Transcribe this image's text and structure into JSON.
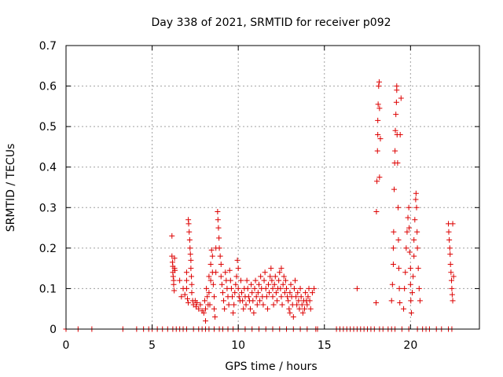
{
  "chart_data": {
    "type": "scatter",
    "title": "Day 338 of 2021, SRMTID for receiver p092",
    "xlabel": "GPS time / hours",
    "ylabel": "SRMTID / TECUs",
    "xlim": [
      0,
      24
    ],
    "ylim": [
      0,
      0.7
    ],
    "x_ticks": [
      0,
      5,
      10,
      15,
      20
    ],
    "x_tick_labels": [
      "0",
      "5",
      "10",
      "15",
      "20"
    ],
    "y_ticks": [
      0,
      0.1,
      0.2,
      0.3,
      0.4,
      0.5,
      0.6,
      0.7
    ],
    "y_tick_labels": [
      "0",
      "0.1",
      "0.2",
      "0.3",
      "0.4",
      "0.5",
      "0.6",
      "0.7"
    ],
    "grid": true,
    "marker": "+",
    "color": "#dd0000",
    "series": [
      {
        "name": "SRMTID",
        "points": [
          [
            0.0,
            0
          ],
          [
            0.7,
            0
          ],
          [
            1.5,
            0
          ],
          [
            3.3,
            0
          ],
          [
            4.1,
            0
          ],
          [
            4.5,
            0
          ],
          [
            4.8,
            0
          ],
          [
            5.0,
            0
          ],
          [
            5.3,
            0
          ],
          [
            5.6,
            0
          ],
          [
            5.9,
            0
          ],
          [
            6.2,
            0
          ],
          [
            6.4,
            0
          ],
          [
            6.6,
            0
          ],
          [
            6.8,
            0
          ],
          [
            7.0,
            0
          ],
          [
            7.4,
            0
          ],
          [
            7.7,
            0
          ],
          [
            7.9,
            0
          ],
          [
            8.1,
            0
          ],
          [
            8.3,
            0
          ],
          [
            8.6,
            0
          ],
          [
            8.9,
            0
          ],
          [
            9.1,
            0
          ],
          [
            9.4,
            0
          ],
          [
            9.7,
            0
          ],
          [
            10.0,
            0
          ],
          [
            10.4,
            0
          ],
          [
            10.8,
            0
          ],
          [
            11.2,
            0
          ],
          [
            11.6,
            0
          ],
          [
            12.0,
            0
          ],
          [
            12.4,
            0
          ],
          [
            12.8,
            0
          ],
          [
            13.2,
            0
          ],
          [
            13.6,
            0
          ],
          [
            14.0,
            0
          ],
          [
            14.5,
            0
          ],
          [
            14.6,
            0
          ],
          [
            15.7,
            0
          ],
          [
            15.9,
            0
          ],
          [
            16.1,
            0
          ],
          [
            16.3,
            0
          ],
          [
            16.5,
            0
          ],
          [
            16.7,
            0
          ],
          [
            16.9,
            0
          ],
          [
            17.1,
            0
          ],
          [
            17.3,
            0
          ],
          [
            17.5,
            0
          ],
          [
            17.7,
            0
          ],
          [
            17.9,
            0
          ],
          [
            18.2,
            0
          ],
          [
            18.4,
            0
          ],
          [
            18.7,
            0
          ],
          [
            18.9,
            0
          ],
          [
            19.1,
            0
          ],
          [
            19.5,
            0
          ],
          [
            19.9,
            0
          ],
          [
            20.4,
            0
          ],
          [
            20.7,
            0
          ],
          [
            20.9,
            0
          ],
          [
            21.1,
            0
          ],
          [
            21.5,
            0
          ],
          [
            21.8,
            0
          ],
          [
            22.2,
            0
          ],
          [
            22.4,
            0
          ],
          [
            6.15,
            0.23
          ],
          [
            6.15,
            0.18
          ],
          [
            6.18,
            0.165
          ],
          [
            6.2,
            0.155
          ],
          [
            6.2,
            0.14
          ],
          [
            6.22,
            0.13
          ],
          [
            6.25,
            0.12
          ],
          [
            6.25,
            0.11
          ],
          [
            6.28,
            0.095
          ],
          [
            6.3,
            0.15
          ],
          [
            6.3,
            0.175
          ],
          [
            6.32,
            0.145
          ],
          [
            6.6,
            0.12
          ],
          [
            6.7,
            0.08
          ],
          [
            6.8,
            0.1
          ],
          [
            6.9,
            0.085
          ],
          [
            7.0,
            0.14
          ],
          [
            7.0,
            0.12
          ],
          [
            7.0,
            0.1
          ],
          [
            7.05,
            0.075
          ],
          [
            7.1,
            0.065
          ],
          [
            7.1,
            0.27
          ],
          [
            7.12,
            0.26
          ],
          [
            7.15,
            0.24
          ],
          [
            7.18,
            0.22
          ],
          [
            7.2,
            0.2
          ],
          [
            7.22,
            0.185
          ],
          [
            7.25,
            0.17
          ],
          [
            7.25,
            0.15
          ],
          [
            7.28,
            0.13
          ],
          [
            7.3,
            0.11
          ],
          [
            7.3,
            0.09
          ],
          [
            7.35,
            0.07
          ],
          [
            7.4,
            0.06
          ],
          [
            7.5,
            0.07
          ],
          [
            7.55,
            0.055
          ],
          [
            7.6,
            0.065
          ],
          [
            7.7,
            0.05
          ],
          [
            7.8,
            0.06
          ],
          [
            7.9,
            0.045
          ],
          [
            8.0,
            0.04
          ],
          [
            8.05,
            0.07
          ],
          [
            8.1,
            0.02
          ],
          [
            8.1,
            0.05
          ],
          [
            8.15,
            0.1
          ],
          [
            8.2,
            0.08
          ],
          [
            8.25,
            0.06
          ],
          [
            8.3,
            0.13
          ],
          [
            8.3,
            0.09
          ],
          [
            8.35,
            0.06
          ],
          [
            8.4,
            0.12
          ],
          [
            8.4,
            0.16
          ],
          [
            8.45,
            0.195
          ],
          [
            8.5,
            0.18
          ],
          [
            8.5,
            0.14
          ],
          [
            8.55,
            0.11
          ],
          [
            8.6,
            0.08
          ],
          [
            8.6,
            0.05
          ],
          [
            8.65,
            0.03
          ],
          [
            8.7,
            0.14
          ],
          [
            8.7,
            0.2
          ],
          [
            8.8,
            0.29
          ],
          [
            8.82,
            0.27
          ],
          [
            8.85,
            0.25
          ],
          [
            8.88,
            0.225
          ],
          [
            8.9,
            0.2
          ],
          [
            8.95,
            0.18
          ],
          [
            9.0,
            0.16
          ],
          [
            9.0,
            0.13
          ],
          [
            9.05,
            0.11
          ],
          [
            9.1,
            0.09
          ],
          [
            9.15,
            0.07
          ],
          [
            9.2,
            0.05
          ],
          [
            9.25,
            0.14
          ],
          [
            9.3,
            0.12
          ],
          [
            9.35,
            0.1
          ],
          [
            9.4,
            0.08
          ],
          [
            9.45,
            0.06
          ],
          [
            9.5,
            0.145
          ],
          [
            9.55,
            0.12
          ],
          [
            9.6,
            0.1
          ],
          [
            9.65,
            0.08
          ],
          [
            9.7,
            0.04
          ],
          [
            9.75,
            0.06
          ],
          [
            9.8,
            0.09
          ],
          [
            9.85,
            0.11
          ],
          [
            9.9,
            0.13
          ],
          [
            9.95,
            0.17
          ],
          [
            10.0,
            0.15
          ],
          [
            10.0,
            0.1
          ],
          [
            10.05,
            0.08
          ],
          [
            10.1,
            0.07
          ],
          [
            10.15,
            0.12
          ],
          [
            10.2,
            0.09
          ],
          [
            10.25,
            0.07
          ],
          [
            10.3,
            0.05
          ],
          [
            10.35,
            0.1
          ],
          [
            10.4,
            0.08
          ],
          [
            10.45,
            0.06
          ],
          [
            10.5,
            0.12
          ],
          [
            10.55,
            0.1
          ],
          [
            10.6,
            0.08
          ],
          [
            10.65,
            0.07
          ],
          [
            10.7,
            0.05
          ],
          [
            10.75,
            0.11
          ],
          [
            10.8,
            0.09
          ],
          [
            10.85,
            0.07
          ],
          [
            10.9,
            0.04
          ],
          [
            10.95,
            0.1
          ],
          [
            11.0,
            0.12
          ],
          [
            11.05,
            0.08
          ],
          [
            11.1,
            0.06
          ],
          [
            11.15,
            0.09
          ],
          [
            11.2,
            0.11
          ],
          [
            11.25,
            0.07
          ],
          [
            11.3,
            0.13
          ],
          [
            11.35,
            0.1
          ],
          [
            11.4,
            0.08
          ],
          [
            11.45,
            0.06
          ],
          [
            11.5,
            0.12
          ],
          [
            11.55,
            0.14
          ],
          [
            11.6,
            0.1
          ],
          [
            11.65,
            0.08
          ],
          [
            11.7,
            0.05
          ],
          [
            11.75,
            0.11
          ],
          [
            11.8,
            0.09
          ],
          [
            11.85,
            0.13
          ],
          [
            11.9,
            0.15
          ],
          [
            11.95,
            0.12
          ],
          [
            12.0,
            0.1
          ],
          [
            12.0,
            0.08
          ],
          [
            12.05,
            0.06
          ],
          [
            12.1,
            0.11
          ],
          [
            12.15,
            0.13
          ],
          [
            12.2,
            0.09
          ],
          [
            12.25,
            0.07
          ],
          [
            12.3,
            0.1
          ],
          [
            12.35,
            0.12
          ],
          [
            12.4,
            0.14
          ],
          [
            12.45,
            0.1
          ],
          [
            12.5,
            0.15
          ],
          [
            12.5,
            0.08
          ],
          [
            12.55,
            0.06
          ],
          [
            12.6,
            0.11
          ],
          [
            12.65,
            0.13
          ],
          [
            12.7,
            0.09
          ],
          [
            12.75,
            0.12
          ],
          [
            12.8,
            0.1
          ],
          [
            12.85,
            0.08
          ],
          [
            12.9,
            0.07
          ],
          [
            12.95,
            0.05
          ],
          [
            13.0,
            0.04
          ],
          [
            13.0,
            0.09
          ],
          [
            13.05,
            0.11
          ],
          [
            13.1,
            0.08
          ],
          [
            13.15,
            0.06
          ],
          [
            13.2,
            0.03
          ],
          [
            13.25,
            0.1
          ],
          [
            13.3,
            0.12
          ],
          [
            13.35,
            0.08
          ],
          [
            13.4,
            0.06
          ],
          [
            13.45,
            0.09
          ],
          [
            13.5,
            0.07
          ],
          [
            13.55,
            0.05
          ],
          [
            13.6,
            0.1
          ],
          [
            13.65,
            0.08
          ],
          [
            13.7,
            0.06
          ],
          [
            13.75,
            0.04
          ],
          [
            13.8,
            0.07
          ],
          [
            13.85,
            0.05
          ],
          [
            13.9,
            0.09
          ],
          [
            13.95,
            0.07
          ],
          [
            14.0,
            0.06
          ],
          [
            14.05,
            0.08
          ],
          [
            14.1,
            0.1
          ],
          [
            14.15,
            0.07
          ],
          [
            14.2,
            0.05
          ],
          [
            14.3,
            0.09
          ],
          [
            14.4,
            0.1
          ],
          [
            16.9,
            0.1
          ],
          [
            18.0,
            0.065
          ],
          [
            18.02,
            0.29
          ],
          [
            18.05,
            0.365
          ],
          [
            18.08,
            0.44
          ],
          [
            18.1,
            0.48
          ],
          [
            18.1,
            0.515
          ],
          [
            18.12,
            0.555
          ],
          [
            18.15,
            0.6
          ],
          [
            18.18,
            0.61
          ],
          [
            18.2,
            0.545
          ],
          [
            18.2,
            0.375
          ],
          [
            18.25,
            0.47
          ],
          [
            18.9,
            0.07
          ],
          [
            18.95,
            0.11
          ],
          [
            19.0,
            0.16
          ],
          [
            19.0,
            0.2
          ],
          [
            19.02,
            0.24
          ],
          [
            19.05,
            0.345
          ],
          [
            19.08,
            0.41
          ],
          [
            19.1,
            0.44
          ],
          [
            19.12,
            0.49
          ],
          [
            19.15,
            0.53
          ],
          [
            19.18,
            0.56
          ],
          [
            19.2,
            0.59
          ],
          [
            19.2,
            0.6
          ],
          [
            19.22,
            0.48
          ],
          [
            19.25,
            0.41
          ],
          [
            19.28,
            0.3
          ],
          [
            19.3,
            0.22
          ],
          [
            19.32,
            0.15
          ],
          [
            19.35,
            0.1
          ],
          [
            19.38,
            0.065
          ],
          [
            19.4,
            0.48
          ],
          [
            19.45,
            0.57
          ],
          [
            19.6,
            0.05
          ],
          [
            19.65,
            0.1
          ],
          [
            19.7,
            0.14
          ],
          [
            19.75,
            0.2
          ],
          [
            19.8,
            0.24
          ],
          [
            19.85,
            0.275
          ],
          [
            19.9,
            0.3
          ],
          [
            19.92,
            0.25
          ],
          [
            19.95,
            0.19
          ],
          [
            20.0,
            0.15
          ],
          [
            20.0,
            0.11
          ],
          [
            20.02,
            0.07
          ],
          [
            20.05,
            0.04
          ],
          [
            20.1,
            0.09
          ],
          [
            20.15,
            0.13
          ],
          [
            20.2,
            0.18
          ],
          [
            20.2,
            0.22
          ],
          [
            20.25,
            0.27
          ],
          [
            20.3,
            0.32
          ],
          [
            20.32,
            0.335
          ],
          [
            20.35,
            0.3
          ],
          [
            20.38,
            0.24
          ],
          [
            20.4,
            0.2
          ],
          [
            20.45,
            0.15
          ],
          [
            20.5,
            0.1
          ],
          [
            20.55,
            0.07
          ],
          [
            22.2,
            0.26
          ],
          [
            22.22,
            0.24
          ],
          [
            22.25,
            0.22
          ],
          [
            22.28,
            0.2
          ],
          [
            22.3,
            0.185
          ],
          [
            22.32,
            0.16
          ],
          [
            22.35,
            0.14
          ],
          [
            22.38,
            0.12
          ],
          [
            22.4,
            0.1
          ],
          [
            22.42,
            0.085
          ],
          [
            22.45,
            0.07
          ],
          [
            22.45,
            0.26
          ],
          [
            22.5,
            0.13
          ]
        ]
      }
    ]
  }
}
